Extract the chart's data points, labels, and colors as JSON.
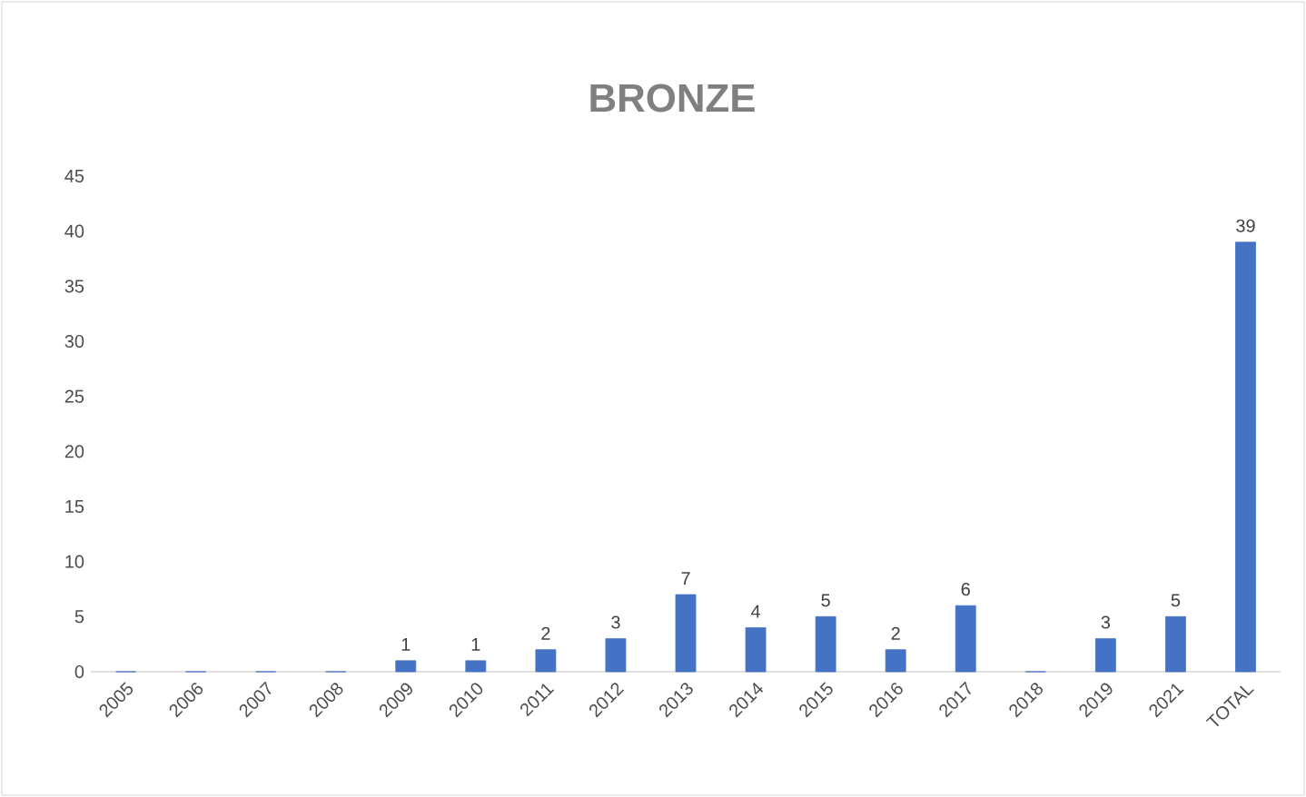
{
  "chart_data": {
    "type": "bar",
    "title": "BRONZE",
    "categories": [
      "2005",
      "2006",
      "2007",
      "2008",
      "2009",
      "2010",
      "2011",
      "2012",
      "2013",
      "2014",
      "2015",
      "2016",
      "2017",
      "2018",
      "2019",
      "2021",
      "TOTAL"
    ],
    "values": [
      0,
      0,
      0,
      0,
      1,
      1,
      2,
      3,
      7,
      4,
      5,
      2,
      6,
      0,
      3,
      5,
      39
    ],
    "value_labels": [
      null,
      null,
      null,
      null,
      "1",
      "1",
      "2",
      "3",
      "7",
      "4",
      "5",
      "2",
      "6",
      null,
      "3",
      "5",
      "39"
    ],
    "color": "#4472c4",
    "ylim": [
      0,
      45
    ],
    "yticks": [
      0,
      5,
      10,
      15,
      20,
      25,
      30,
      35,
      40,
      45
    ]
  }
}
